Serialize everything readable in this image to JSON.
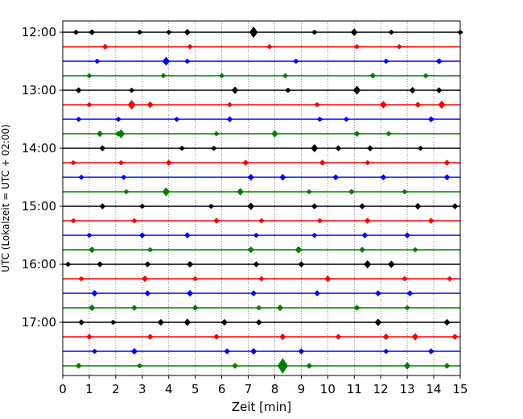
{
  "chart_data": {
    "type": "line",
    "title": "",
    "xlabel": "Zeit  [min]",
    "ylabel": "UTC (Lokalzeit = UTC + 02:00)",
    "xlim": [
      0,
      15
    ],
    "x_ticks": [
      0,
      1,
      2,
      3,
      4,
      5,
      6,
      7,
      8,
      9,
      10,
      11,
      12,
      13,
      14,
      15
    ],
    "y_tick_labels": [
      "12:00",
      "13:00",
      "14:00",
      "15:00",
      "16:00",
      "17:00"
    ],
    "grid": "vertical dotted lines at each minute",
    "legend": "none",
    "trace_interval_minutes": 15,
    "trace_colors": [
      "#000000",
      "#ff0000",
      "#0000ff",
      "#008000"
    ],
    "traces": [
      {
        "start": "12:00",
        "color": "#000000",
        "events": [
          [
            0.5,
            0.3
          ],
          [
            1.1,
            0.35
          ],
          [
            2.9,
            0.3
          ],
          [
            4.0,
            0.3
          ],
          [
            4.7,
            0.4
          ],
          [
            7.2,
            0.7
          ],
          [
            9.5,
            0.3
          ],
          [
            11.0,
            0.45
          ],
          [
            12.4,
            0.3
          ],
          [
            15.0,
            0.3
          ]
        ]
      },
      {
        "start": "12:15",
        "color": "#ff0000",
        "events": [
          [
            1.6,
            0.35
          ],
          [
            4.8,
            0.3
          ],
          [
            7.8,
            0.3
          ],
          [
            11.1,
            0.3
          ],
          [
            12.7,
            0.3
          ]
        ]
      },
      {
        "start": "12:30",
        "color": "#0000ff",
        "events": [
          [
            1.3,
            0.3
          ],
          [
            3.9,
            0.55
          ],
          [
            4.7,
            0.3
          ],
          [
            8.8,
            0.3
          ],
          [
            12.2,
            0.3
          ],
          [
            14.2,
            0.35
          ]
        ]
      },
      {
        "start": "12:45",
        "color": "#008000",
        "events": [
          [
            1.0,
            0.3
          ],
          [
            3.8,
            0.3
          ],
          [
            6.0,
            0.3
          ],
          [
            8.4,
            0.3
          ],
          [
            11.7,
            0.35
          ],
          [
            13.7,
            0.3
          ]
        ]
      },
      {
        "start": "13:00",
        "color": "#000000",
        "events": [
          [
            0.6,
            0.35
          ],
          [
            2.6,
            0.3
          ],
          [
            6.5,
            0.45
          ],
          [
            8.5,
            0.3
          ],
          [
            11.1,
            0.55
          ],
          [
            13.2,
            0.4
          ],
          [
            14.2,
            0.35
          ]
        ]
      },
      {
        "start": "13:15",
        "color": "#ff0000",
        "events": [
          [
            1.0,
            0.3
          ],
          [
            2.6,
            0.6
          ],
          [
            3.3,
            0.4
          ],
          [
            6.3,
            0.3
          ],
          [
            9.6,
            0.3
          ],
          [
            12.1,
            0.45
          ],
          [
            13.4,
            0.35
          ],
          [
            14.3,
            0.5
          ]
        ]
      },
      {
        "start": "13:30",
        "color": "#0000ff",
        "events": [
          [
            0.6,
            0.3
          ],
          [
            2.1,
            0.3
          ],
          [
            4.3,
            0.3
          ],
          [
            6.3,
            0.35
          ],
          [
            9.7,
            0.3
          ],
          [
            10.7,
            0.3
          ],
          [
            13.9,
            0.35
          ]
        ]
      },
      {
        "start": "13:45",
        "color": "#008000",
        "events": [
          [
            1.4,
            0.4
          ],
          [
            2.1,
            0.35
          ],
          [
            2.2,
            0.55
          ],
          [
            5.8,
            0.3
          ],
          [
            8.0,
            0.45
          ],
          [
            11.1,
            0.35
          ],
          [
            12.3,
            0.3
          ]
        ]
      },
      {
        "start": "14:00",
        "color": "#000000",
        "events": [
          [
            1.5,
            0.35
          ],
          [
            4.5,
            0.3
          ],
          [
            5.7,
            0.3
          ],
          [
            9.5,
            0.5
          ],
          [
            10.4,
            0.35
          ],
          [
            11.6,
            0.35
          ],
          [
            13.5,
            0.3
          ]
        ]
      },
      {
        "start": "14:15",
        "color": "#ff0000",
        "events": [
          [
            0.4,
            0.3
          ],
          [
            2.2,
            0.3
          ],
          [
            4.0,
            0.35
          ],
          [
            6.9,
            0.35
          ],
          [
            9.8,
            0.35
          ],
          [
            11.5,
            0.3
          ],
          [
            14.5,
            0.35
          ]
        ]
      },
      {
        "start": "14:30",
        "color": "#0000ff",
        "events": [
          [
            0.7,
            0.3
          ],
          [
            2.3,
            0.3
          ],
          [
            7.1,
            0.4
          ],
          [
            8.3,
            0.4
          ],
          [
            10.3,
            0.35
          ],
          [
            12.1,
            0.35
          ],
          [
            14.5,
            0.35
          ]
        ]
      },
      {
        "start": "14:45",
        "color": "#008000",
        "events": [
          [
            2.4,
            0.3
          ],
          [
            3.9,
            0.55
          ],
          [
            6.7,
            0.45
          ],
          [
            9.3,
            0.3
          ],
          [
            10.9,
            0.35
          ],
          [
            12.9,
            0.3
          ]
        ]
      },
      {
        "start": "15:00",
        "color": "#000000",
        "events": [
          [
            1.5,
            0.35
          ],
          [
            3.0,
            0.3
          ],
          [
            5.6,
            0.3
          ],
          [
            7.1,
            0.45
          ],
          [
            9.5,
            0.35
          ],
          [
            11.3,
            0.35
          ],
          [
            13.4,
            0.4
          ],
          [
            14.8,
            0.35
          ]
        ]
      },
      {
        "start": "15:15",
        "color": "#ff0000",
        "events": [
          [
            0.4,
            0.3
          ],
          [
            2.7,
            0.3
          ],
          [
            5.8,
            0.35
          ],
          [
            7.5,
            0.3
          ],
          [
            9.7,
            0.3
          ],
          [
            11.5,
            0.35
          ],
          [
            13.9,
            0.35
          ]
        ]
      },
      {
        "start": "15:30",
        "color": "#0000ff",
        "events": [
          [
            1.0,
            0.3
          ],
          [
            3.0,
            0.35
          ],
          [
            4.7,
            0.35
          ],
          [
            7.3,
            0.3
          ],
          [
            9.5,
            0.3
          ],
          [
            11.4,
            0.35
          ],
          [
            13.0,
            0.35
          ]
        ]
      },
      {
        "start": "15:45",
        "color": "#008000",
        "events": [
          [
            1.1,
            0.4
          ],
          [
            3.3,
            0.3
          ],
          [
            7.1,
            0.4
          ],
          [
            8.9,
            0.45
          ],
          [
            11.3,
            0.35
          ],
          [
            13.3,
            0.3
          ]
        ]
      },
      {
        "start": "16:00",
        "color": "#000000",
        "events": [
          [
            0.2,
            0.3
          ],
          [
            1.4,
            0.35
          ],
          [
            3.2,
            0.35
          ],
          [
            4.8,
            0.4
          ],
          [
            7.3,
            0.35
          ],
          [
            9.0,
            0.35
          ],
          [
            11.5,
            0.5
          ],
          [
            12.4,
            0.45
          ]
        ]
      },
      {
        "start": "16:15",
        "color": "#ff0000",
        "events": [
          [
            0.7,
            0.3
          ],
          [
            3.1,
            0.4
          ],
          [
            5.0,
            0.3
          ],
          [
            7.5,
            0.3
          ],
          [
            10.0,
            0.4
          ],
          [
            12.9,
            0.3
          ],
          [
            14.6,
            0.3
          ]
        ]
      },
      {
        "start": "16:30",
        "color": "#0000ff",
        "events": [
          [
            1.2,
            0.4
          ],
          [
            3.2,
            0.35
          ],
          [
            4.8,
            0.4
          ],
          [
            7.2,
            0.35
          ],
          [
            9.6,
            0.35
          ],
          [
            11.9,
            0.35
          ],
          [
            13.1,
            0.35
          ]
        ]
      },
      {
        "start": "16:45",
        "color": "#008000",
        "events": [
          [
            1.1,
            0.4
          ],
          [
            2.7,
            0.35
          ],
          [
            5.0,
            0.35
          ],
          [
            7.4,
            0.3
          ],
          [
            8.2,
            0.4
          ],
          [
            11.1,
            0.35
          ],
          [
            13.0,
            0.3
          ]
        ]
      },
      {
        "start": "17:00",
        "color": "#000000",
        "events": [
          [
            0.7,
            0.35
          ],
          [
            1.9,
            0.3
          ],
          [
            3.7,
            0.4
          ],
          [
            4.7,
            0.45
          ],
          [
            6.1,
            0.4
          ],
          [
            7.4,
            0.35
          ],
          [
            11.9,
            0.45
          ],
          [
            14.5,
            0.4
          ]
        ]
      },
      {
        "start": "17:15",
        "color": "#ff0000",
        "events": [
          [
            1.0,
            0.35
          ],
          [
            3.3,
            0.35
          ],
          [
            5.8,
            0.35
          ],
          [
            8.3,
            0.4
          ],
          [
            10.4,
            0.35
          ],
          [
            12.2,
            0.4
          ],
          [
            13.3,
            0.45
          ],
          [
            14.8,
            0.35
          ]
        ]
      },
      {
        "start": "17:30",
        "color": "#0000ff",
        "events": [
          [
            1.2,
            0.3
          ],
          [
            2.7,
            0.4
          ],
          [
            6.2,
            0.35
          ],
          [
            7.2,
            0.4
          ],
          [
            9.0,
            0.35
          ],
          [
            12.2,
            0.3
          ],
          [
            13.9,
            0.35
          ]
        ]
      },
      {
        "start": "17:45",
        "color": "#008000",
        "events": [
          [
            0.6,
            0.35
          ],
          [
            2.9,
            0.3
          ],
          [
            6.5,
            0.35
          ],
          [
            8.3,
            1.0
          ],
          [
            9.3,
            0.35
          ],
          [
            13.0,
            0.45
          ],
          [
            14.5,
            0.35
          ]
        ]
      }
    ]
  }
}
